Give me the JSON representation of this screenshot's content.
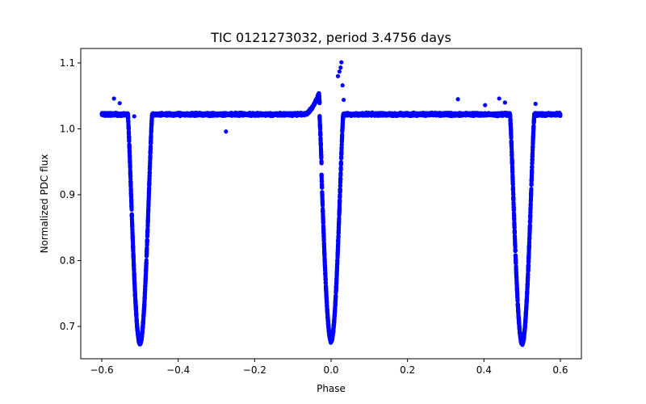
{
  "chart_data": {
    "type": "scatter",
    "title": "TIC 0121273032, period 3.4756 days",
    "xlabel": "Phase",
    "ylabel": "Normalized PDC flux",
    "xlim": [
      -0.655,
      0.655
    ],
    "ylim": [
      0.651,
      1.122
    ],
    "xticks": [
      -0.6,
      -0.4,
      -0.2,
      0.0,
      0.2,
      0.4,
      0.6
    ],
    "xtick_labels": [
      "−0.6",
      "−0.4",
      "−0.2",
      "0.0",
      "0.2",
      "0.4",
      "0.6"
    ],
    "yticks": [
      0.7,
      0.8,
      0.9,
      1.0,
      1.1
    ],
    "ytick_labels": [
      "0.7",
      "0.8",
      "0.9",
      "1.0",
      "1.1"
    ],
    "grid": false,
    "series": [
      {
        "name": "flux",
        "color": "#0000ff",
        "marker": "circle",
        "baseline": 1.022,
        "baseline_scatter": 0.006,
        "phase_range": [
          -0.6,
          0.6
        ],
        "eclipses": [
          {
            "center": -0.5,
            "depth_min": 0.674,
            "half_width": 0.032
          },
          {
            "center": 0.0,
            "depth_min": 0.678,
            "half_width": 0.032
          },
          {
            "center": 0.5,
            "depth_min": 0.674,
            "half_width": 0.032
          }
        ],
        "pre_eclipse_brightening": {
          "start": -0.075,
          "end": -0.025,
          "peak": 1.066
        },
        "outliers": [
          {
            "x": -0.568,
            "y": 1.046
          },
          {
            "x": -0.553,
            "y": 1.039
          },
          {
            "x": -0.515,
            "y": 1.019
          },
          {
            "x": -0.275,
            "y": 0.996
          },
          {
            "x": 0.018,
            "y": 1.08
          },
          {
            "x": 0.022,
            "y": 1.087
          },
          {
            "x": 0.025,
            "y": 1.093
          },
          {
            "x": 0.027,
            "y": 1.101
          },
          {
            "x": 0.03,
            "y": 1.066
          },
          {
            "x": 0.033,
            "y": 1.044
          },
          {
            "x": 0.332,
            "y": 1.045
          },
          {
            "x": 0.403,
            "y": 1.036
          },
          {
            "x": 0.44,
            "y": 1.046
          },
          {
            "x": 0.455,
            "y": 1.04
          },
          {
            "x": 0.535,
            "y": 1.038
          }
        ]
      }
    ]
  }
}
